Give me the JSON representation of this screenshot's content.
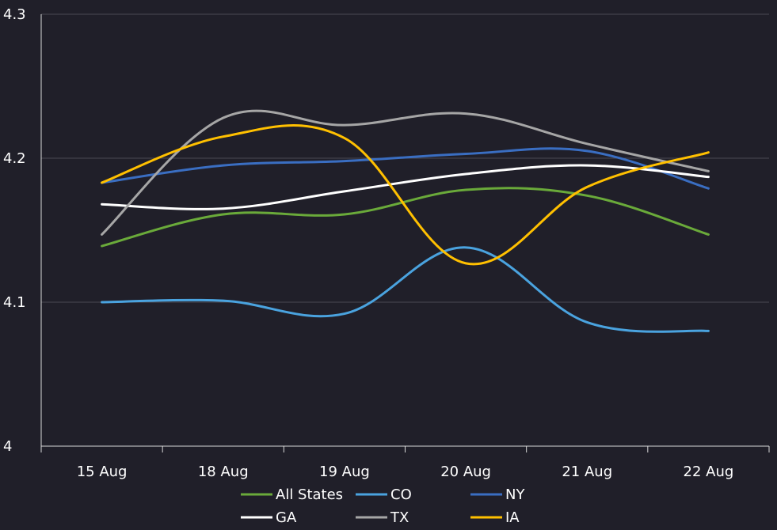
{
  "chart_data": {
    "type": "line",
    "categories": [
      "15 Aug",
      "18 Aug",
      "19 Aug",
      "20 Aug",
      "21 Aug",
      "22 Aug"
    ],
    "series": [
      {
        "name": "All States",
        "color": "#6aaa3a",
        "values": [
          4.139,
          4.161,
          4.161,
          4.178,
          4.174,
          4.147
        ]
      },
      {
        "name": "CO",
        "color": "#4aa3df",
        "values": [
          4.1,
          4.101,
          4.092,
          4.138,
          4.086,
          4.08
        ]
      },
      {
        "name": "NY",
        "color": "#3a6ec2",
        "values": [
          4.183,
          4.195,
          4.198,
          4.203,
          4.205,
          4.179
        ]
      },
      {
        "name": "GA",
        "color": "#ffffff",
        "values": [
          4.168,
          4.165,
          4.177,
          4.189,
          4.195,
          4.187
        ]
      },
      {
        "name": "TX",
        "color": "#a6a6a6",
        "values": [
          4.147,
          4.228,
          4.223,
          4.231,
          4.21,
          4.191
        ]
      },
      {
        "name": "IA",
        "color": "#ffc000",
        "values": [
          4.183,
          4.215,
          4.214,
          4.127,
          4.18,
          4.204
        ]
      }
    ],
    "ylim": [
      4,
      4.3
    ],
    "yticks": [
      "4",
      "4.1",
      "4.2",
      "4.3"
    ],
    "grid": true,
    "legend": "bottom",
    "title": "",
    "xlabel": "",
    "ylabel": ""
  }
}
